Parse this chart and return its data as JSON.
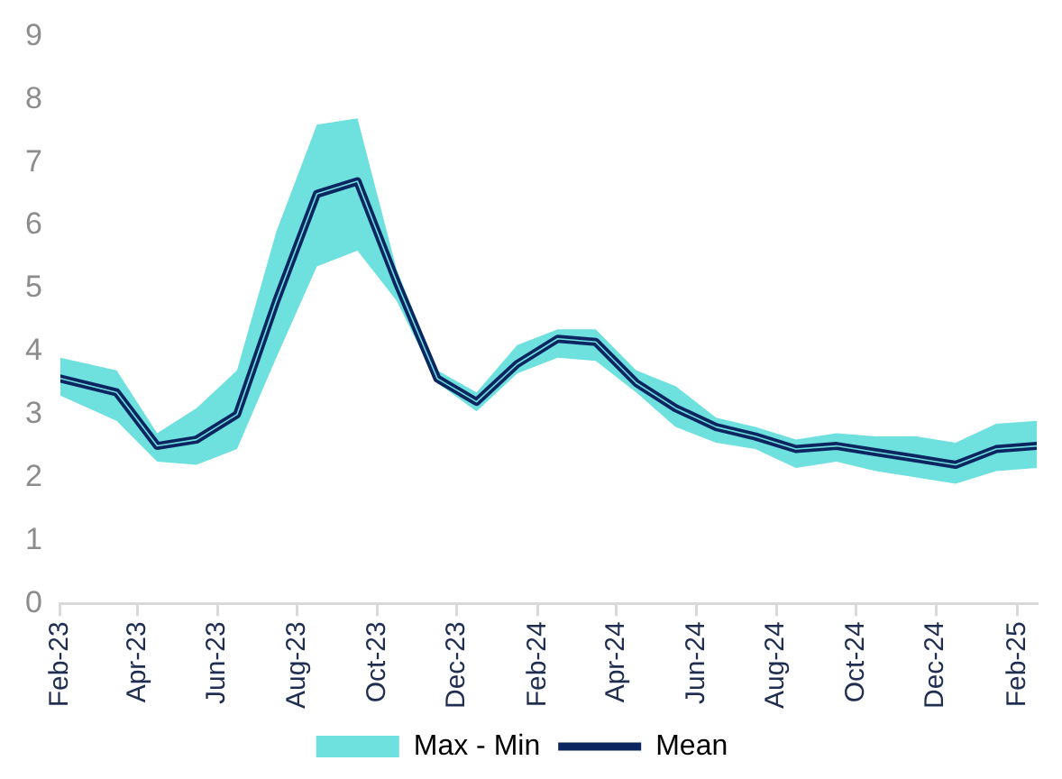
{
  "chart_data": {
    "type": "line",
    "x": [
      "2023-02-01",
      "2023-03-16",
      "2023-04-16",
      "2023-05-16",
      "2023-06-16",
      "2023-07-16",
      "2023-08-16",
      "2023-09-16",
      "2023-10-16",
      "2023-11-16",
      "2023-12-16",
      "2024-01-16",
      "2024-02-16",
      "2024-03-16",
      "2024-04-16",
      "2024-05-16",
      "2024-06-16",
      "2024-07-16",
      "2024-08-16",
      "2024-09-16",
      "2024-10-16",
      "2024-11-16",
      "2024-12-16",
      "2025-01-16",
      "2025-02-16"
    ],
    "series": [
      {
        "name": "Max - Min",
        "type": "line",
        "color": "#6ee0de",
        "values": [
          3.57,
          3.35,
          2.5,
          2.6,
          3.0,
          4.8,
          6.5,
          6.7,
          5.1,
          3.57,
          3.2,
          3.8,
          4.2,
          4.15,
          3.5,
          3.1,
          2.8,
          2.65,
          2.45,
          2.5,
          2.4,
          2.3,
          2.2,
          2.45,
          2.5
        ],
        "upper": [
          3.9,
          3.7,
          2.7,
          3.1,
          3.7,
          5.9,
          7.6,
          7.7,
          5.3,
          3.7,
          3.35,
          4.1,
          4.35,
          4.35,
          3.7,
          3.45,
          2.95,
          2.8,
          2.6,
          2.7,
          2.65,
          2.65,
          2.55,
          2.85,
          2.9
        ],
        "lower": [
          3.3,
          2.9,
          2.25,
          2.2,
          2.45,
          3.9,
          5.35,
          5.6,
          4.8,
          3.5,
          3.05,
          3.65,
          3.9,
          3.85,
          3.35,
          2.8,
          2.55,
          2.45,
          2.15,
          2.25,
          2.1,
          2.0,
          1.9,
          2.1,
          2.15
        ]
      },
      {
        "name": "Mean",
        "type": "line",
        "color": "#0b2560",
        "values": [
          3.57,
          3.35,
          2.5,
          2.6,
          3.0,
          4.8,
          6.5,
          6.7,
          5.1,
          3.57,
          3.2,
          3.8,
          4.2,
          4.15,
          3.5,
          3.1,
          2.8,
          2.65,
          2.45,
          2.5,
          2.4,
          2.3,
          2.2,
          2.45,
          2.5
        ]
      }
    ],
    "xlim": [
      "2023-02-01",
      "2025-02-16"
    ],
    "xticks": [
      {
        "value": "2023-02",
        "label": "Feb-23"
      },
      {
        "value": "2023-04",
        "label": "Apr-23"
      },
      {
        "value": "2023-06",
        "label": "Jun-23"
      },
      {
        "value": "2023-08",
        "label": "Aug-23"
      },
      {
        "value": "2023-10",
        "label": "Oct-23"
      },
      {
        "value": "2023-12",
        "label": "Dec-23"
      },
      {
        "value": "2024-02",
        "label": "Feb-24"
      },
      {
        "value": "2024-04",
        "label": "Apr-24"
      },
      {
        "value": "2024-06",
        "label": "Jun-24"
      },
      {
        "value": "2024-08",
        "label": "Aug-24"
      },
      {
        "value": "2024-10",
        "label": "Oct-24"
      },
      {
        "value": "2024-12",
        "label": "Dec-24"
      },
      {
        "value": "2025-02",
        "label": "Feb-25"
      }
    ],
    "ylim": [
      0,
      9
    ],
    "yticks": [
      0,
      1,
      2,
      3,
      4,
      5,
      6,
      7,
      8,
      9
    ],
    "legend": "bottom",
    "grid": false,
    "marker": "none"
  }
}
